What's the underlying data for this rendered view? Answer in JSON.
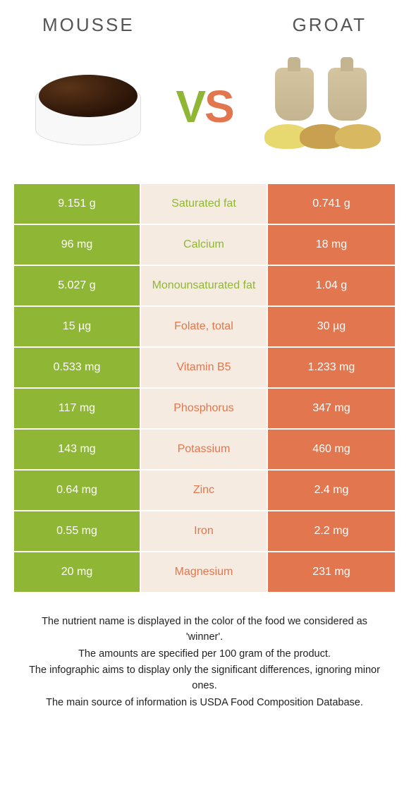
{
  "header": {
    "left_title": "MOUSSE",
    "right_title": "GROAT",
    "vs_left": "V",
    "vs_right": "S"
  },
  "colors": {
    "left": "#8fb735",
    "right": "#e2764e",
    "mid_bg": "#f5ebe0",
    "text": "#ffffff"
  },
  "rows": [
    {
      "left": "9.151 g",
      "label": "Saturated fat",
      "right": "0.741 g",
      "winner": "left"
    },
    {
      "left": "96 mg",
      "label": "Calcium",
      "right": "18 mg",
      "winner": "left"
    },
    {
      "left": "5.027 g",
      "label": "Monounsaturated fat",
      "right": "1.04 g",
      "winner": "left"
    },
    {
      "left": "15 µg",
      "label": "Folate, total",
      "right": "30 µg",
      "winner": "right"
    },
    {
      "left": "0.533 mg",
      "label": "Vitamin B5",
      "right": "1.233 mg",
      "winner": "right"
    },
    {
      "left": "117 mg",
      "label": "Phosphorus",
      "right": "347 mg",
      "winner": "right"
    },
    {
      "left": "143 mg",
      "label": "Potassium",
      "right": "460 mg",
      "winner": "right"
    },
    {
      "left": "0.64 mg",
      "label": "Zinc",
      "right": "2.4 mg",
      "winner": "right"
    },
    {
      "left": "0.55 mg",
      "label": "Iron",
      "right": "2.2 mg",
      "winner": "right"
    },
    {
      "left": "20 mg",
      "label": "Magnesium",
      "right": "231 mg",
      "winner": "right"
    }
  ],
  "footer": {
    "line1": "The nutrient name is displayed in the color of the food we considered as 'winner'.",
    "line2": "The amounts are specified per 100 gram of the product.",
    "line3": "The infographic aims to display only the significant differences, ignoring minor ones.",
    "line4": "The main source of information is USDA Food Composition Database."
  }
}
